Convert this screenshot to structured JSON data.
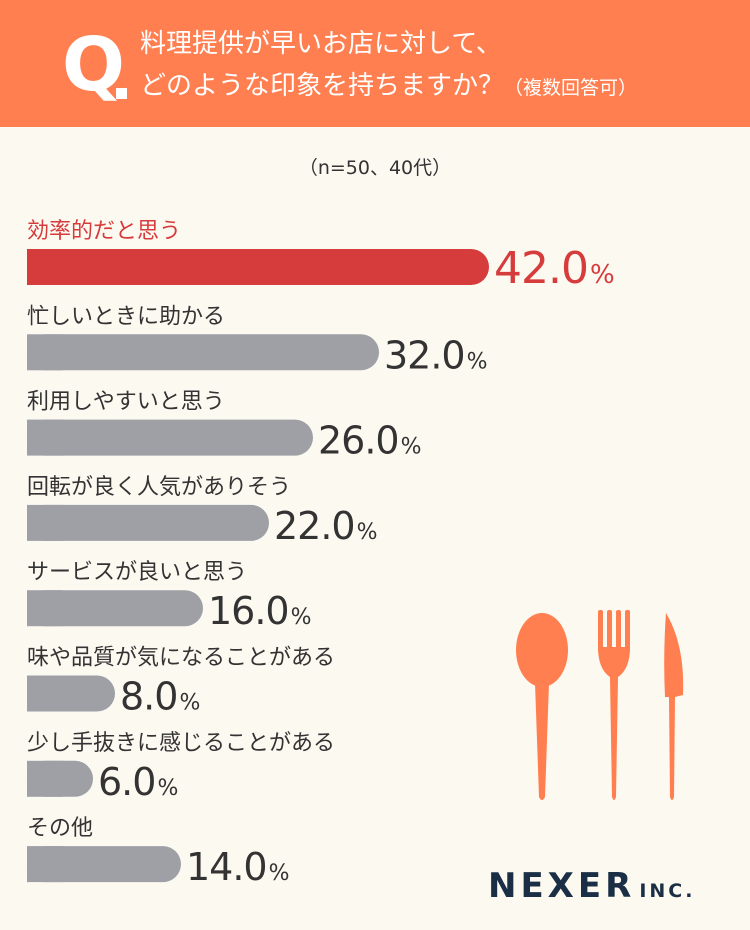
{
  "header": {
    "q_letter": "Q",
    "question_line1": "料理提供が早いお店に対して、",
    "question_line2": "どのような印象を持ちますか？",
    "question_note": "（複数回答可）"
  },
  "sample_note": "（n=50、40代）",
  "brand": {
    "name": "NEXER",
    "suffix": "INC."
  },
  "colors": {
    "header_bg": "#ff7f50",
    "highlight": "#d63c3c",
    "bar_default": "#9ea0a6",
    "background": "#fcf9f1",
    "cutlery": "#ff7f50",
    "brand": "#1a2e45"
  },
  "icons": [
    "spoon-icon",
    "fork-icon",
    "knife-icon"
  ],
  "chart_data": {
    "type": "bar",
    "orientation": "horizontal",
    "unit": "%",
    "categories": [
      "効率的だと思う",
      "忙しいときに助かる",
      "利用しやすいと思う",
      "回転が良く人気がありそう",
      "サービスが良いと思う",
      "味や品質が気になることがある",
      "少し手抜きに感じることがある",
      "その他"
    ],
    "values": [
      42.0,
      32.0,
      26.0,
      22.0,
      16.0,
      8.0,
      6.0,
      14.0
    ],
    "value_labels": [
      "42.0",
      "32.0",
      "26.0",
      "22.0",
      "16.0",
      "8.0",
      "6.0",
      "14.0"
    ],
    "highlight_index": 0,
    "xlim": [
      0,
      100
    ],
    "grid": false,
    "legend": "none"
  }
}
